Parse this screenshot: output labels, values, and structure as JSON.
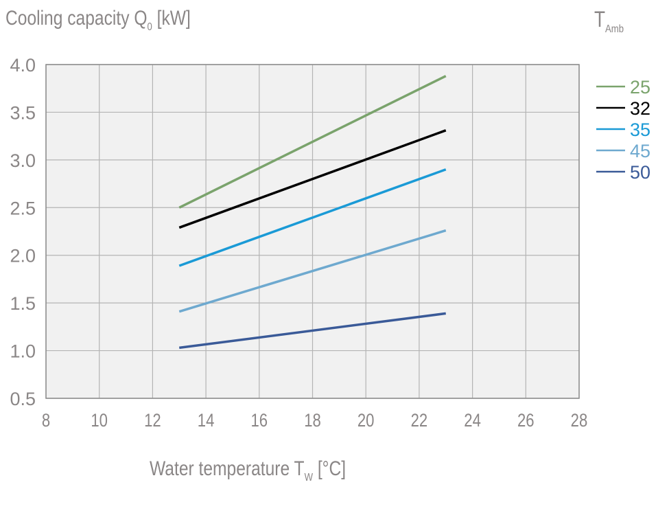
{
  "chart_data": {
    "type": "line",
    "title": "Cooling capacity Q",
    "title_sub": "0",
    "title_unit": "[kW]",
    "xlabel": "Water temperature T",
    "xlabel_sub": "W",
    "xlabel_unit": "[°C]",
    "legend_title": "T",
    "legend_title_sub": "Amb",
    "legend_position": "right",
    "xlim": [
      8,
      28
    ],
    "ylim": [
      0.5,
      4.0
    ],
    "grid": true,
    "x_ticks": [
      "8",
      "10",
      "12",
      "14",
      "16",
      "18",
      "20",
      "22",
      "24",
      "26",
      "28"
    ],
    "y_ticks": [
      "0.5",
      "1.0",
      "1.5",
      "2.0",
      "2.5",
      "3.0",
      "3.5",
      "4.0"
    ],
    "x_tick_values": [
      8,
      10,
      12,
      14,
      16,
      18,
      20,
      22,
      24,
      26,
      28
    ],
    "y_tick_values": [
      0.5,
      1.0,
      1.5,
      2.0,
      2.5,
      3.0,
      3.5,
      4.0
    ],
    "series": [
      {
        "name": "25",
        "color": "#7aa36c",
        "x": [
          13,
          23
        ],
        "y": [
          2.5,
          3.88
        ]
      },
      {
        "name": "32",
        "color": "#000000",
        "x": [
          13,
          23
        ],
        "y": [
          2.29,
          3.31
        ]
      },
      {
        "name": "35",
        "color": "#1a9ad6",
        "x": [
          13,
          23
        ],
        "y": [
          1.89,
          2.9
        ]
      },
      {
        "name": "45",
        "color": "#6ea9cf",
        "x": [
          13,
          23
        ],
        "y": [
          1.41,
          2.26
        ]
      },
      {
        "name": "50",
        "color": "#3a5a98",
        "x": [
          13,
          23
        ],
        "y": [
          1.03,
          1.39
        ]
      }
    ]
  }
}
